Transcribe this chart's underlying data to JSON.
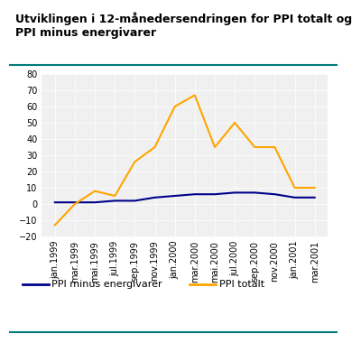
{
  "title_line1": "Utviklingen i 12-månedersendringen for PPI totalt og",
  "title_line2": "PPI minus energivarer",
  "x_labels": [
    "jan.1999",
    "mar.1999",
    "mai.1999",
    "jul.1999",
    "sep.1999",
    "nov.1999",
    "jan.2000",
    "mar.2000",
    "mai.2000",
    "jul.2000",
    "sep.2000",
    "nov.2000",
    "jan.2001",
    "mar.2001"
  ],
  "ppi_total": [
    -13,
    0,
    8,
    5,
    26,
    35,
    60,
    67,
    35,
    50,
    35,
    35,
    10,
    10
  ],
  "ppi_minus": [
    1,
    1,
    1,
    2,
    2,
    4,
    5,
    6,
    6,
    7,
    7,
    6,
    4,
    4
  ],
  "ylim": [
    -20,
    80
  ],
  "yticks": [
    -20,
    -10,
    0,
    10,
    20,
    30,
    40,
    50,
    60,
    70,
    80
  ],
  "line_color_total": "#FFA500",
  "line_color_minus": "#00008B",
  "legend_labels": [
    "PPI minus energivarer",
    "PPI totalt"
  ],
  "plot_bg": "#F0F0F0",
  "grid_color": "#CCCCCC",
  "title_fontsize": 9,
  "axis_fontsize": 7,
  "legend_fontsize": 8,
  "teal_color": "#007B7B"
}
